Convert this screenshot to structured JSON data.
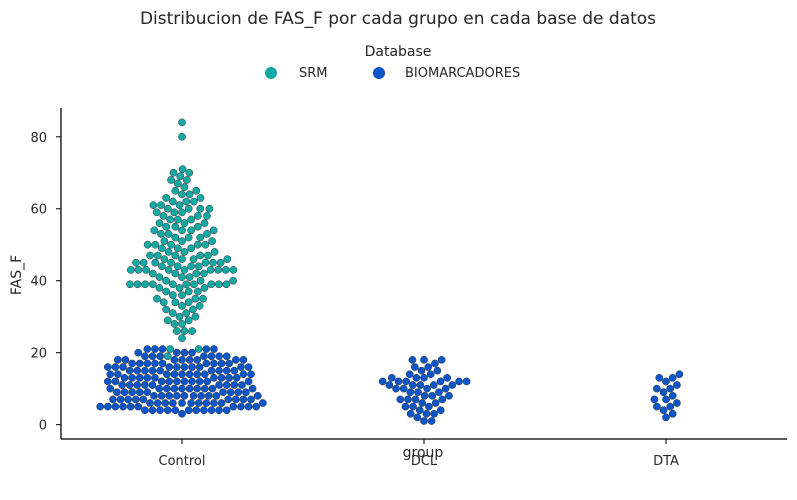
{
  "chart_data": {
    "type": "scatter",
    "subtype": "swarm",
    "title": "Distribucion de FAS_F por cada grupo en cada base de datos",
    "xlabel": "group",
    "ylabel": "FAS_F",
    "categories": [
      "Control",
      "DCL",
      "DTA"
    ],
    "ylim": [
      -4,
      88
    ],
    "yticks": [
      0,
      20,
      40,
      60,
      80
    ],
    "legend": {
      "title": "Database",
      "position": "top-center",
      "entries": [
        "SRM",
        "BIOMARCADORES"
      ]
    },
    "colors": {
      "SRM": "#12a9a4",
      "BIOMARCADORES": "#0a56c9",
      "marker_edge": "#333333",
      "axis": "#262626"
    },
    "series": [
      {
        "name": "SRM",
        "data": [
          {
            "group": "Control",
            "values": [
              19,
              21,
              21,
              24,
              26,
              26,
              26,
              28,
              28,
              29,
              29,
              30,
              30,
              31,
              31,
              32,
              32,
              33,
              33,
              34,
              34,
              34,
              35,
              35,
              35,
              36,
              36,
              37,
              37,
              37,
              38,
              38,
              38,
              39,
              39,
              39,
              39,
              39,
              39,
              39,
              39,
              39,
              39,
              40,
              40,
              40,
              41,
              41,
              41,
              42,
              42,
              42,
              42,
              43,
              43,
              43,
              43,
              43,
              43,
              43,
              43,
              43,
              44,
              44,
              44,
              44,
              45,
              45,
              45,
              45,
              45,
              45,
              45,
              46,
              46,
              46,
              46,
              47,
              47,
              47,
              47,
              47,
              48,
              48,
              48,
              49,
              49,
              49,
              50,
              50,
              50,
              50,
              50,
              51,
              51,
              51,
              52,
              52,
              52,
              53,
              53,
              53,
              54,
              54,
              54,
              54,
              55,
              55,
              55,
              56,
              56,
              56,
              57,
              57,
              57,
              58,
              58,
              58,
              59,
              59,
              59,
              60,
              60,
              60,
              60,
              61,
              61,
              61,
              62,
              62,
              62,
              63,
              63,
              64,
              64,
              65,
              65,
              66,
              67,
              68,
              68,
              69,
              70,
              70,
              71,
              80,
              84
            ]
          }
        ]
      },
      {
        "name": "BIOMARCADORES",
        "data": [
          {
            "group": "Control",
            "values": [
              3,
              4,
              4,
              4,
              4,
              4,
              4,
              4,
              4,
              4,
              4,
              4,
              5,
              5,
              5,
              5,
              5,
              5,
              5,
              5,
              5,
              5,
              6,
              6,
              6,
              6,
              6,
              6,
              6,
              6,
              6,
              6,
              6,
              7,
              7,
              7,
              7,
              7,
              7,
              7,
              7,
              7,
              8,
              8,
              8,
              8,
              8,
              8,
              8,
              8,
              8,
              8,
              9,
              9,
              9,
              9,
              9,
              9,
              9,
              9,
              9,
              10,
              10,
              10,
              10,
              10,
              10,
              10,
              10,
              10,
              10,
              11,
              11,
              11,
              11,
              11,
              11,
              11,
              11,
              11,
              12,
              12,
              12,
              12,
              12,
              12,
              12,
              12,
              12,
              12,
              13,
              13,
              13,
              13,
              13,
              13,
              13,
              13,
              13,
              14,
              14,
              14,
              14,
              14,
              14,
              14,
              14,
              14,
              14,
              15,
              15,
              15,
              15,
              15,
              15,
              15,
              15,
              15,
              16,
              16,
              16,
              16,
              16,
              16,
              16,
              16,
              16,
              16,
              17,
              17,
              17,
              17,
              17,
              17,
              17,
              17,
              17,
              18,
              18,
              18,
              18,
              18,
              18,
              18,
              18,
              19,
              19,
              19,
              19,
              19,
              19,
              19,
              20,
              20,
              20,
              20,
              21,
              21,
              21,
              21,
              21
            ]
          },
          {
            "group": "DCL",
            "values": [
              1,
              1,
              2,
              3,
              3,
              3,
              4,
              4,
              5,
              5,
              5,
              6,
              6,
              7,
              7,
              7,
              7,
              8,
              8,
              8,
              9,
              9,
              9,
              10,
              10,
              10,
              10,
              11,
              11,
              11,
              11,
              11,
              12,
              12,
              12,
              12,
              12,
              12,
              13,
              13,
              13,
              13,
              14,
              14,
              15,
              15,
              16,
              16,
              17,
              18,
              18,
              18
            ]
          },
          {
            "group": "DTA",
            "values": [
              2,
              3,
              4,
              5,
              5,
              6,
              7,
              7,
              8,
              9,
              10,
              10,
              11,
              12,
              13,
              13,
              14
            ]
          }
        ]
      }
    ]
  }
}
